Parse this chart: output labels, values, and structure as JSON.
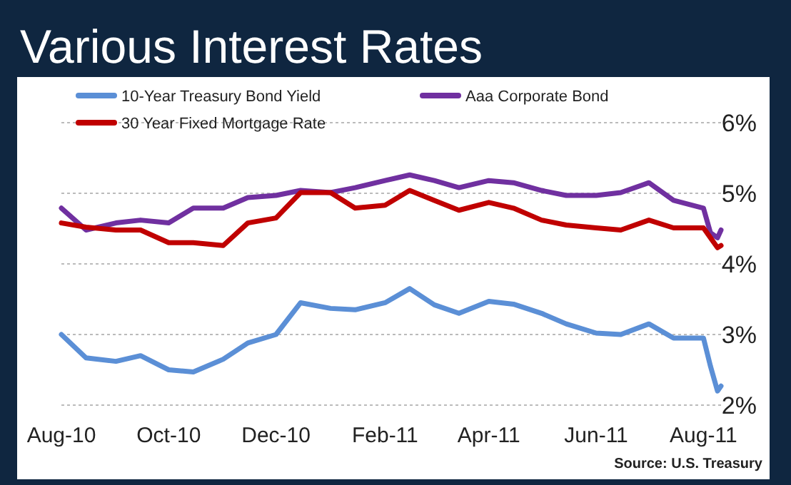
{
  "chart_data": {
    "type": "line",
    "title": "Various Interest Rates",
    "annotations": [
      "Source: U.S. Treasury"
    ],
    "x": [
      "2010-08-01",
      "2010-08-15",
      "2010-09-01",
      "2010-09-15",
      "2010-10-01",
      "2010-10-15",
      "2010-11-01",
      "2010-11-15",
      "2010-12-01",
      "2010-12-15",
      "2011-01-01",
      "2011-01-15",
      "2011-02-01",
      "2011-02-15",
      "2011-03-01",
      "2011-03-15",
      "2011-04-01",
      "2011-04-15",
      "2011-05-01",
      "2011-05-15",
      "2011-06-01",
      "2011-06-15",
      "2011-07-01",
      "2011-07-15",
      "2011-08-01",
      "2011-08-05",
      "2011-08-09",
      "2011-08-11"
    ],
    "series": [
      {
        "name": "10-Year Treasury Bond Yield",
        "color": "#5b8fd6",
        "values": [
          3.0,
          2.67,
          2.62,
          2.7,
          2.5,
          2.47,
          2.65,
          2.88,
          3.0,
          3.45,
          3.37,
          3.35,
          3.45,
          3.65,
          3.42,
          3.3,
          3.47,
          3.43,
          3.3,
          3.15,
          3.02,
          3.0,
          3.15,
          2.95,
          2.95,
          2.55,
          2.2,
          2.27
        ]
      },
      {
        "name": "Aaa Corporate Bond",
        "color": "#7030a0",
        "values": [
          4.79,
          4.48,
          4.58,
          4.62,
          4.58,
          4.79,
          4.79,
          4.94,
          4.97,
          5.04,
          5.01,
          5.08,
          5.18,
          5.26,
          5.18,
          5.08,
          5.18,
          5.15,
          5.04,
          4.97,
          4.97,
          5.01,
          5.15,
          4.9,
          4.79,
          4.44,
          4.37,
          4.48
        ]
      },
      {
        "name": "30 Year Fixed Mortgage Rate",
        "color": "#c00000",
        "values": [
          4.58,
          4.52,
          4.48,
          4.48,
          4.3,
          4.3,
          4.26,
          4.58,
          4.65,
          5.01,
          5.01,
          4.79,
          4.83,
          5.04,
          4.9,
          4.76,
          4.87,
          4.79,
          4.62,
          4.55,
          4.51,
          4.48,
          4.62,
          4.51,
          4.51,
          4.37,
          4.23,
          4.26
        ]
      }
    ],
    "xlim": [
      "2010-08-01",
      "2011-08-11"
    ],
    "xticks": [
      {
        "value": "2010-08-01",
        "label": "Aug-10"
      },
      {
        "value": "2010-10-01",
        "label": "Oct-10"
      },
      {
        "value": "2010-12-01",
        "label": "Dec-10"
      },
      {
        "value": "2011-02-01",
        "label": "Feb-11"
      },
      {
        "value": "2011-04-01",
        "label": "Apr-11"
      },
      {
        "value": "2011-06-01",
        "label": "Jun-11"
      },
      {
        "value": "2011-08-01",
        "label": "Aug-11"
      }
    ],
    "ylim": [
      2,
      6
    ],
    "yticks": [
      {
        "value": 2,
        "label": "2%"
      },
      {
        "value": 3,
        "label": "3%"
      },
      {
        "value": 4,
        "label": "4%"
      },
      {
        "value": 5,
        "label": "5%"
      },
      {
        "value": 6,
        "label": "6%"
      }
    ],
    "grid": "y",
    "legend": "top",
    "marker": "none",
    "line_style": "solid"
  }
}
